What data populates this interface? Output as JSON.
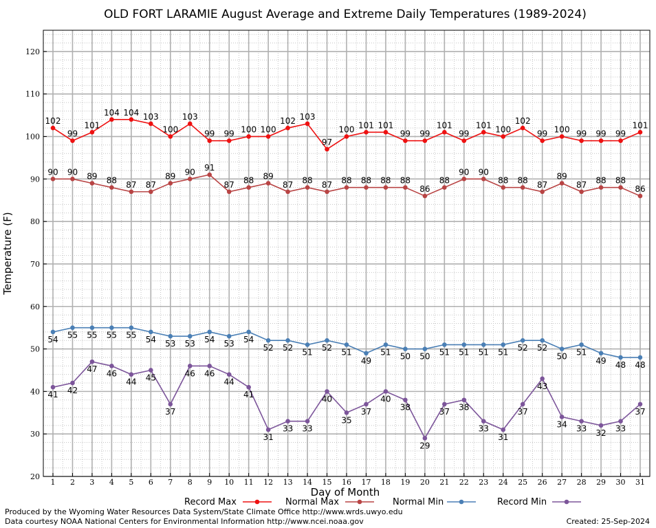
{
  "chart_data": {
    "type": "line",
    "title": "OLD FORT LARAMIE August Average and Extreme Daily Temperatures (1989-2024)",
    "xlabel": "Day of Month",
    "ylabel": "Temperature (F)",
    "ylim": [
      20,
      125
    ],
    "y_ticks": [
      20,
      30,
      40,
      50,
      60,
      70,
      80,
      90,
      100,
      110,
      120
    ],
    "x": [
      1,
      2,
      3,
      4,
      5,
      6,
      7,
      8,
      9,
      10,
      11,
      12,
      13,
      14,
      15,
      16,
      17,
      18,
      19,
      20,
      21,
      22,
      23,
      24,
      25,
      26,
      27,
      28,
      29,
      30,
      31
    ],
    "grid": true,
    "legend_position": "bottom",
    "series": [
      {
        "name": "Record Max",
        "color": "#ee1111",
        "label_position": "above",
        "values": [
          102,
          99,
          101,
          104,
          104,
          103,
          100,
          103,
          99,
          99,
          100,
          100,
          102,
          103,
          97,
          100,
          101,
          101,
          99,
          99,
          101,
          99,
          101,
          100,
          102,
          99,
          100,
          99,
          99,
          99,
          101
        ]
      },
      {
        "name": "Normal Max",
        "color": "#b84444",
        "label_position": "above",
        "values": [
          90,
          90,
          89,
          88,
          87,
          87,
          89,
          90,
          91,
          87,
          88,
          89,
          87,
          88,
          87,
          88,
          88,
          88,
          88,
          86,
          88,
          90,
          90,
          88,
          88,
          87,
          89,
          87,
          88,
          88,
          86
        ]
      },
      {
        "name": "Normal Min",
        "color": "#4a7fb5",
        "label_position": "below",
        "values": [
          54,
          55,
          55,
          55,
          55,
          54,
          53,
          53,
          54,
          53,
          54,
          52,
          52,
          51,
          52,
          51,
          49,
          51,
          50,
          50,
          51,
          51,
          51,
          51,
          52,
          52,
          50,
          51,
          49,
          48,
          48
        ]
      },
      {
        "name": "Record Min",
        "color": "#7c559a",
        "label_position": "below",
        "values": [
          41,
          42,
          47,
          46,
          44,
          45,
          37,
          46,
          46,
          44,
          41,
          31,
          33,
          33,
          40,
          35,
          37,
          40,
          38,
          29,
          37,
          38,
          33,
          31,
          37,
          43,
          34,
          33,
          32,
          33,
          37
        ]
      }
    ]
  },
  "footer": {
    "produced_by": "Produced by the Wyoming Water Resources Data System/State Climate Office http://www.wrds.uwyo.edu",
    "courtesy": "Data courtesy NOAA National Centers for Environmental Information http://www.ncei.noaa.gov",
    "created": "Created:  25-Sep-2024"
  }
}
